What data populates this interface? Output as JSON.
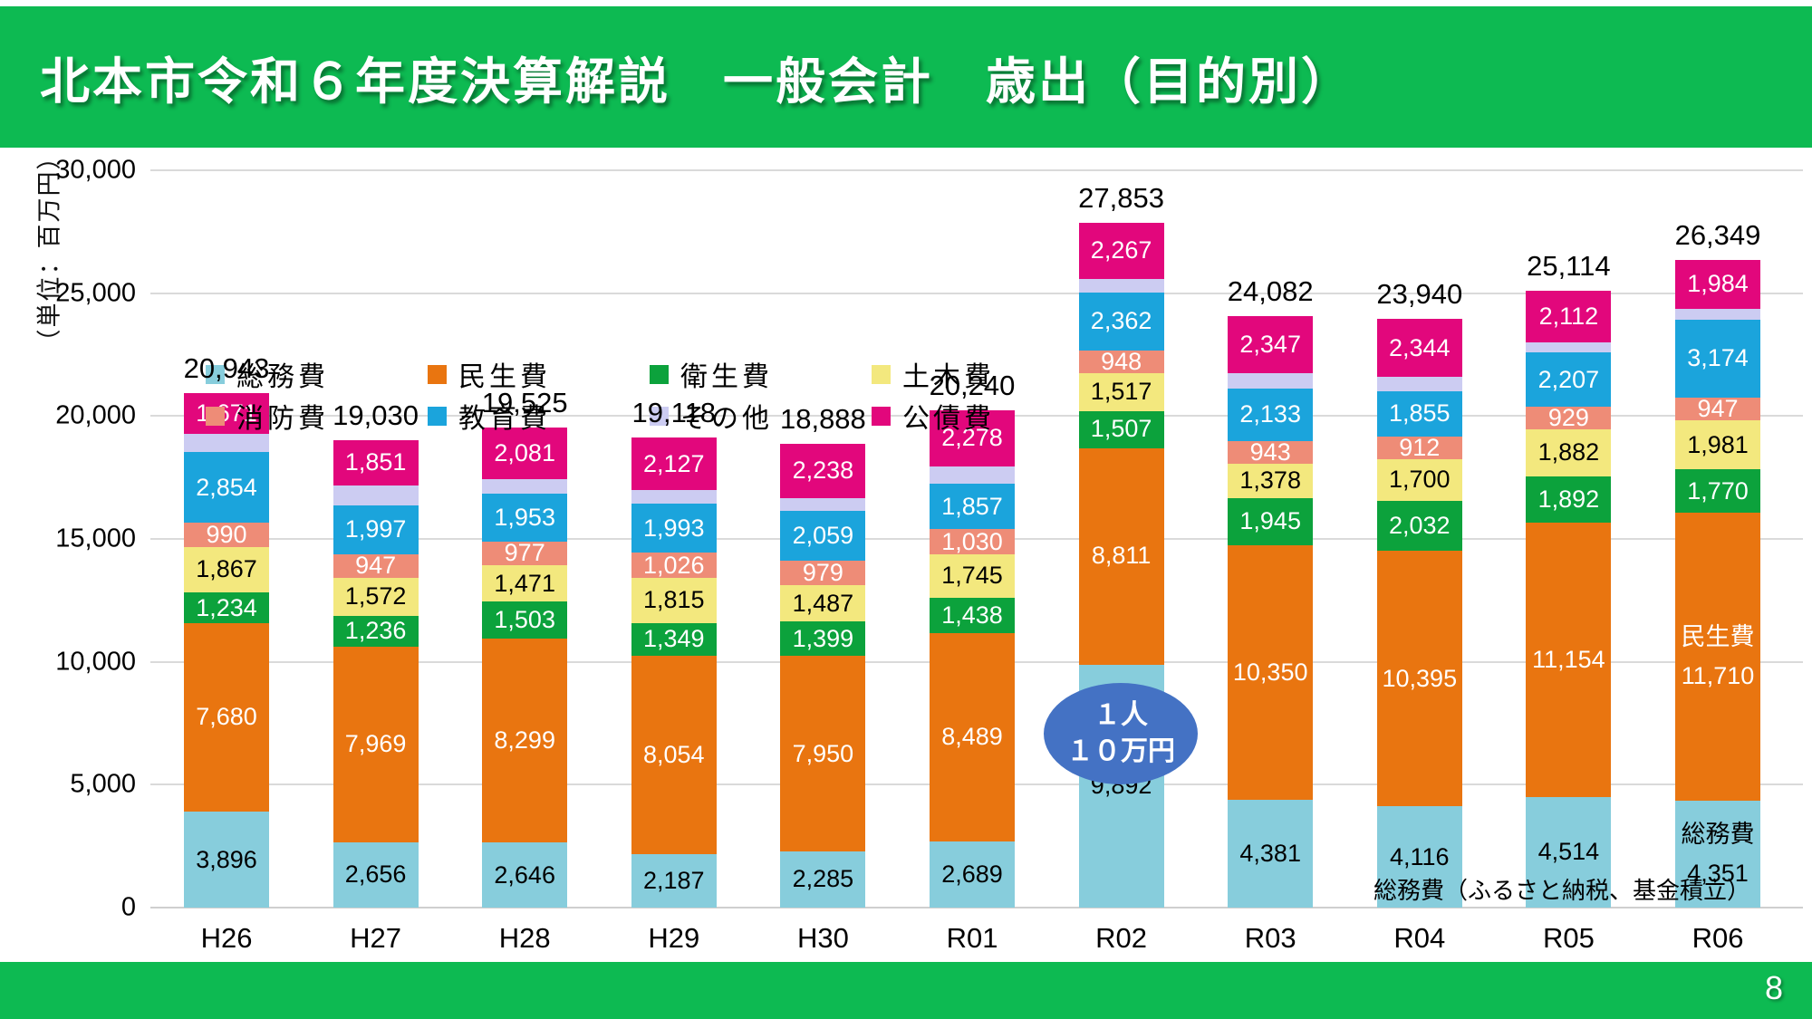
{
  "header": {
    "title": "北本市令和６年度決算解説　一般会計　歳出（目的別）"
  },
  "footer": {
    "page_number": "8"
  },
  "colors": {
    "band_green": "#0DBA52",
    "gridline": "#DADADA",
    "callout_blue": "#4472C4"
  },
  "annotations": {
    "ellipse": {
      "line1": "１人",
      "line2": "１０万円",
      "fill": "#4472C4"
    },
    "note": "総務費（ふるさと納税、基金積立）"
  },
  "chart_data": {
    "type": "bar",
    "stacked": true,
    "title": "",
    "y_axis_title": "（単位：百万円）",
    "unit": "百万円",
    "ylim": [
      0,
      30000
    ],
    "ytick_step": 5000,
    "grid": true,
    "legend_position": "upper-left, 2 rows x 4 columns",
    "categories": [
      "H26",
      "H27",
      "H28",
      "H29",
      "H30",
      "R01",
      "R02",
      "R03",
      "R04",
      "R05",
      "R06"
    ],
    "totals": [
      20943,
      19030,
      19525,
      19118,
      18888,
      20240,
      27853,
      24082,
      23940,
      25114,
      26349
    ],
    "series": [
      {
        "name": "総務費",
        "color": "#87CDDC",
        "label_color": "#000000",
        "values": [
          3896,
          2656,
          2646,
          2187,
          2285,
          2689,
          9892,
          4381,
          4116,
          4514,
          4351
        ]
      },
      {
        "name": "民生費",
        "color": "#E97510",
        "label_color": "#ffffff",
        "values": [
          7680,
          7969,
          8299,
          8054,
          7950,
          8489,
          8811,
          10350,
          10395,
          11154,
          11710
        ]
      },
      {
        "name": "衛生費",
        "color": "#0CA23C",
        "label_color": "#ffffff",
        "values": [
          1234,
          1236,
          1503,
          1349,
          1399,
          1438,
          1507,
          1945,
          2032,
          1892,
          1770
        ]
      },
      {
        "name": "土木費",
        "color": "#F3E87E",
        "label_color": "#000000",
        "values": [
          1867,
          1572,
          1471,
          1815,
          1487,
          1745,
          1517,
          1378,
          1700,
          1882,
          1981
        ]
      },
      {
        "name": "消防費",
        "color": "#EE8C77",
        "label_color": "#ffffff",
        "values": [
          990,
          947,
          977,
          1026,
          979,
          1030,
          948,
          943,
          912,
          929,
          947
        ]
      },
      {
        "name": "教育費",
        "color": "#1BA4DC",
        "label_color": "#ffffff",
        "values": [
          2854,
          1997,
          1953,
          1993,
          2059,
          1857,
          2362,
          2133,
          1855,
          2207,
          3174
        ]
      },
      {
        "name": "その他",
        "color": "#CCCCF2",
        "label_color": "#000000",
        "labels_shown": false,
        "values": [
          751,
          802,
          595,
          567,
          491,
          714,
          549,
          605,
          586,
          424,
          432
        ]
      },
      {
        "name": "公債費",
        "color": "#E2077C",
        "label_color": "#ffffff",
        "values": [
          1671,
          1851,
          2081,
          2127,
          2238,
          2278,
          2267,
          2347,
          2344,
          2112,
          1984
        ]
      }
    ],
    "inner_name_labels": [
      {
        "series": "総務費",
        "category": "R06"
      },
      {
        "series": "民生費",
        "category": "R06"
      }
    ]
  }
}
